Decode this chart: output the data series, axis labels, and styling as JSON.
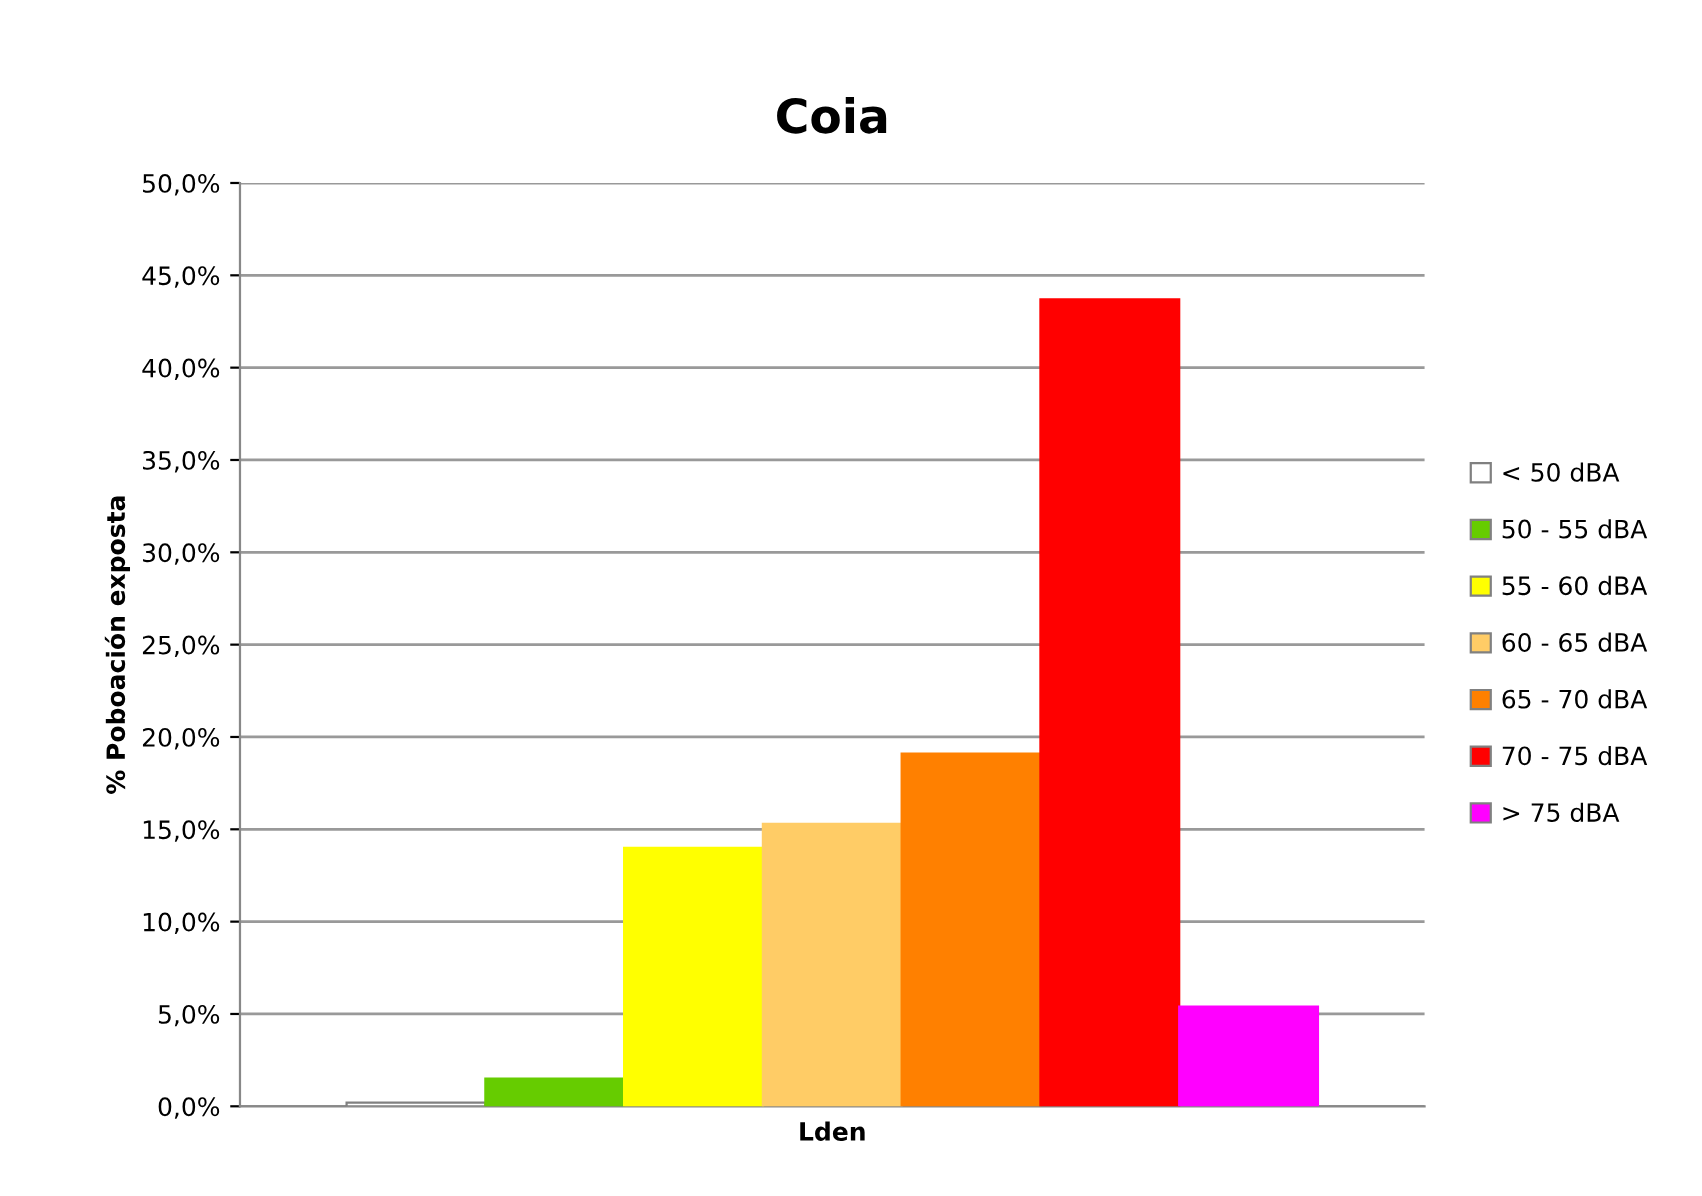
{
  "chart_data": {
    "type": "bar",
    "title": "Coia",
    "xlabel": "Lden",
    "ylabel": "% Poboación exposta",
    "categories": [
      null
    ],
    "series": [
      {
        "name": "< 50 dBA",
        "color": "#ffffff",
        "values": [
          0.2
        ]
      },
      {
        "name": "50 - 55 dBA",
        "color": "#66cc00",
        "values": [
          1.5
        ]
      },
      {
        "name": "55 - 60 dBA",
        "color": "#ffff00",
        "values": [
          14.0
        ]
      },
      {
        "name": "60 - 65 dBA",
        "color": "#ffcc66",
        "values": [
          15.3
        ]
      },
      {
        "name": "65 - 70 dBA",
        "color": "#ff8000",
        "values": [
          19.1
        ]
      },
      {
        "name": "70 - 75 dBA",
        "color": "#ff0000",
        "values": [
          43.7
        ]
      },
      {
        "name": "> 75 dBA",
        "color": "#ff00ff",
        "values": [
          5.4
        ]
      }
    ],
    "ylim": [
      0,
      50
    ],
    "yticks": [
      {
        "value": 0,
        "label": "0,0%"
      },
      {
        "value": 5,
        "label": "5,0%"
      },
      {
        "value": 10,
        "label": "10,0%"
      },
      {
        "value": 15,
        "label": "15,0%"
      },
      {
        "value": 20,
        "label": "20,0%"
      },
      {
        "value": 25,
        "label": "25,0%"
      },
      {
        "value": 30,
        "label": "30,0%"
      },
      {
        "value": 35,
        "label": "35,0%"
      },
      {
        "value": 40,
        "label": "40,0%"
      },
      {
        "value": 45,
        "label": "45,0%"
      },
      {
        "value": 50,
        "label": "50,0%"
      }
    ],
    "grid": "y",
    "legend": "right"
  }
}
